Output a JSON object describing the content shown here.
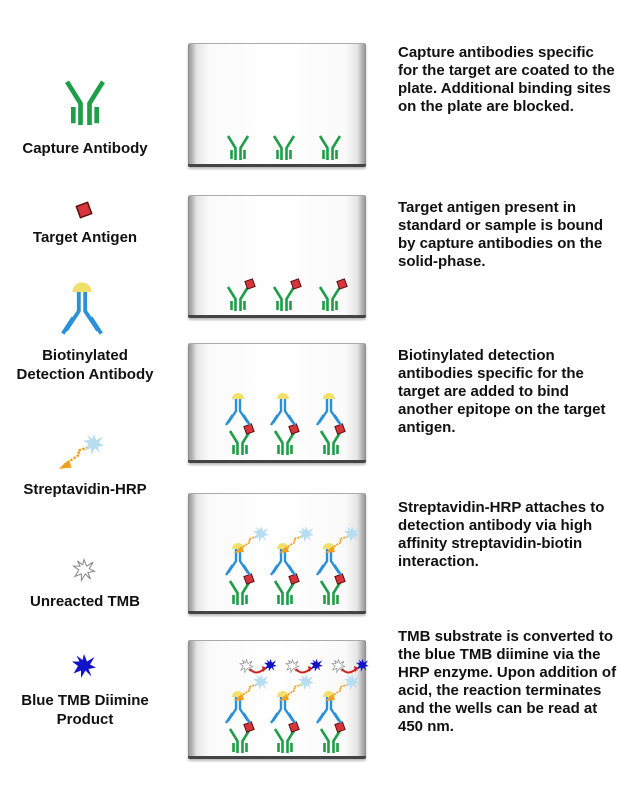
{
  "legend": [
    {
      "label": "Capture Antibody",
      "icon": "capture-antibody"
    },
    {
      "label": "Target Antigen",
      "icon": "target-antigen"
    },
    {
      "label": "Biotinylated Detection Antibody",
      "icon": "detection-antibody"
    },
    {
      "label": "Streptavidin-HRP",
      "icon": "streptavidin-hrp"
    },
    {
      "label": "Unreacted TMB",
      "icon": "unreacted-tmb"
    },
    {
      "label": "Blue TMB Diimine Product",
      "icon": "blue-tmb"
    }
  ],
  "steps": [
    {
      "description": "Capture antibodies specific for the target are coated to the plate. Additional binding sites on the plate are blocked."
    },
    {
      "description": "Target antigen present in standard or sample is bound by capture antibodies on the solid-phase."
    },
    {
      "description": "Biotinylated detection antibodies specific for the target are added to bind another epitope on the target antigen."
    },
    {
      "description": "Streptavidin-HRP attaches to detection antibody via high affinity streptavidin-biotin interaction."
    },
    {
      "description": "TMB substrate is converted to the blue TMB diimine via the HRP enzyme. Upon addition of acid, the reaction terminates and the wells can be read at 450 nm."
    }
  ],
  "colors": {
    "capture": "#1e9e48",
    "antigen": "#d8343c",
    "detection": "#2a90d8",
    "biotin": "#f2e06a",
    "hrp": "#b8dcf0",
    "streptavidin": "#f0a020",
    "tmb_blue": "#1212c8",
    "arrow": "#d0201c"
  }
}
